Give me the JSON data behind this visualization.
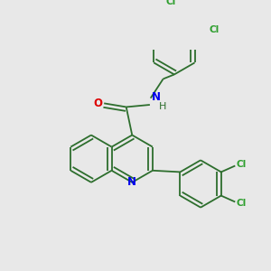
{
  "bg_color": "#e8e8e8",
  "bond_color": "#2d6e2d",
  "nitrogen_color": "#0000ee",
  "oxygen_color": "#dd0000",
  "chlorine_color": "#2d9e2d",
  "line_width": 1.3,
  "dbo": 5.5,
  "fig_w": 3.0,
  "fig_h": 3.0,
  "dpi": 100,
  "xlim": [
    0,
    300
  ],
  "ylim": [
    0,
    300
  ]
}
